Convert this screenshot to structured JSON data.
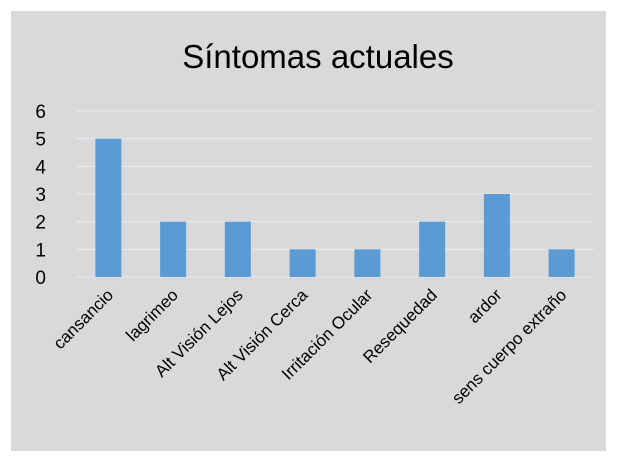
{
  "chart_data": {
    "type": "bar",
    "title": "Síntomas actuales",
    "categories": [
      "cansancio",
      "lagrimeo",
      "Alt Visión Lejos",
      "Alt Visión Cerca",
      "Irritación Ocular",
      "Resequedad",
      "ardor",
      "sens cuerpo extraño"
    ],
    "values": [
      5,
      2,
      2,
      1,
      1,
      2,
      3,
      1
    ],
    "ylim": [
      0,
      6
    ],
    "yticks": [
      "0",
      "1",
      "2",
      "3",
      "4",
      "5",
      "6"
    ],
    "grid": true,
    "legend": "none",
    "colors": {
      "bar": "#5b9bd5",
      "grid": "#ececec",
      "background": "#d9d9d9",
      "border": "#ffffff"
    }
  }
}
